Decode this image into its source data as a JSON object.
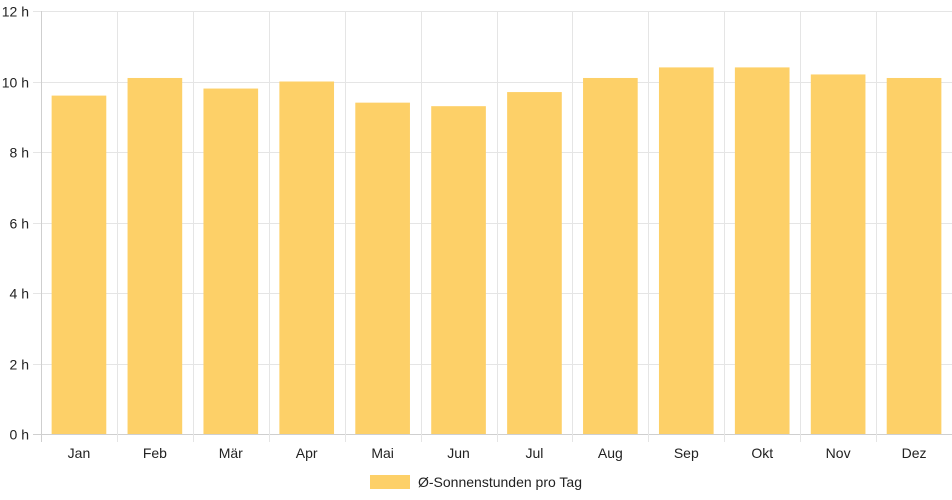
{
  "chart_data": {
    "type": "bar",
    "categories": [
      "Jan",
      "Feb",
      "Mär",
      "Apr",
      "Mai",
      "Jun",
      "Jul",
      "Aug",
      "Sep",
      "Okt",
      "Nov",
      "Dez"
    ],
    "series": [
      {
        "name": "Ø-Sonnenstunden pro Tag",
        "values": [
          9.6,
          10.1,
          9.8,
          10.0,
          9.4,
          9.3,
          9.7,
          10.1,
          10.4,
          10.4,
          10.2,
          10.1
        ],
        "color": "#fdd068"
      }
    ],
    "ylim": [
      0,
      12
    ],
    "yticks": [
      0,
      2,
      4,
      6,
      8,
      10,
      12
    ],
    "ytick_suffix": " h",
    "grid": true,
    "legend_position": "bottom"
  }
}
